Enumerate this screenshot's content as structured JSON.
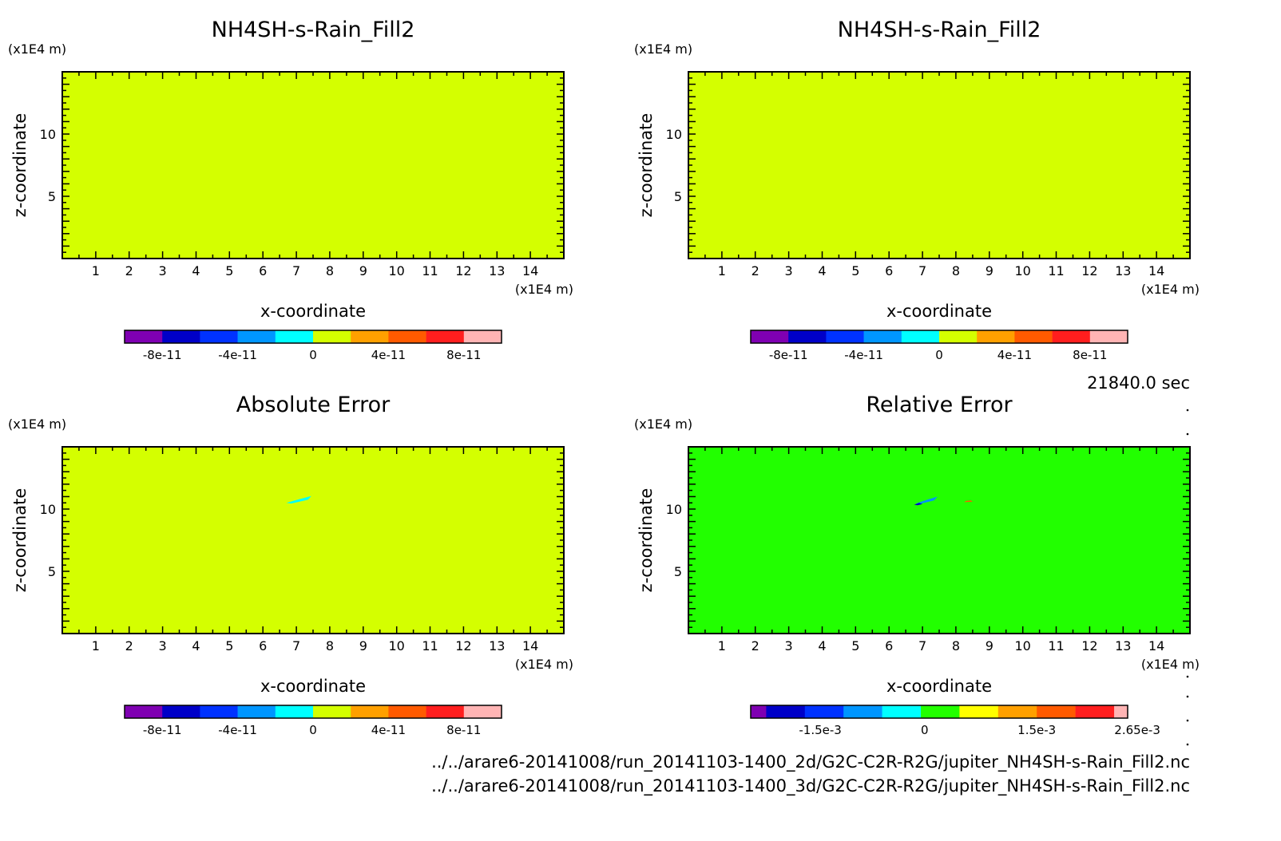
{
  "time_label": "21840.0 sec",
  "file_paths": [
    "../../arare6-20141008/run_20141103-1400_2d/G2C-C2R-R2G/jupiter_NH4SH-s-Rain_Fill2.nc",
    "../../arare6-20141008/run_20141103-1400_3d/G2C-C2R-R2G/jupiter_NH4SH-s-Rain_Fill2.nc"
  ],
  "chart_data": [
    {
      "type": "heatmap",
      "title": "NH4SH-s-Rain_Fill2",
      "xlabel": "x-coordinate",
      "ylabel": "z-coordinate",
      "x_unit": "(x1E4 m)",
      "y_unit": "(x1E4 m)",
      "xlim": [
        0,
        15
      ],
      "ylim": [
        0,
        15
      ],
      "x_ticks": [
        "1",
        "2",
        "3",
        "4",
        "5",
        "6",
        "7",
        "8",
        "9",
        "10",
        "11",
        "12",
        "13",
        "14"
      ],
      "y_ticks": [
        "5",
        "10"
      ],
      "field_color": "#d4ff00",
      "patches": [],
      "colorbar": {
        "colors": [
          "#7f00b2",
          "#0000c8",
          "#0032ff",
          "#0096ff",
          "#00ffff",
          "#d4ff00",
          "#ffa000",
          "#ff5a00",
          "#ff1e1e",
          "#ffb4b4"
        ],
        "labels": [
          "-8e-11",
          "-4e-11",
          "0",
          "4e-11",
          "8e-11"
        ],
        "label_positions": [
          1,
          3,
          5,
          7,
          9
        ]
      }
    },
    {
      "type": "heatmap",
      "title": "NH4SH-s-Rain_Fill2",
      "xlabel": "x-coordinate",
      "ylabel": "z-coordinate",
      "x_unit": "(x1E4 m)",
      "y_unit": "(x1E4 m)",
      "xlim": [
        0,
        15
      ],
      "ylim": [
        0,
        15
      ],
      "x_ticks": [
        "1",
        "2",
        "3",
        "4",
        "5",
        "6",
        "7",
        "8",
        "9",
        "10",
        "11",
        "12",
        "13",
        "14"
      ],
      "y_ticks": [
        "5",
        "10"
      ],
      "field_color": "#d4ff00",
      "patches": [],
      "colorbar": {
        "colors": [
          "#7f00b2",
          "#0000c8",
          "#0032ff",
          "#0096ff",
          "#00ffff",
          "#d4ff00",
          "#ffa000",
          "#ff5a00",
          "#ff1e1e",
          "#ffb4b4"
        ],
        "labels": [
          "-8e-11",
          "-4e-11",
          "0",
          "4e-11",
          "8e-11"
        ],
        "label_positions": [
          1,
          3,
          5,
          7,
          9
        ]
      }
    },
    {
      "type": "heatmap",
      "title": "Absolute Error",
      "xlabel": "x-coordinate",
      "ylabel": "z-coordinate",
      "x_unit": "(x1E4 m)",
      "y_unit": "(x1E4 m)",
      "xlim": [
        0,
        15
      ],
      "ylim": [
        0,
        15
      ],
      "x_ticks": [
        "1",
        "2",
        "3",
        "4",
        "5",
        "6",
        "7",
        "8",
        "9",
        "10",
        "11",
        "12",
        "13",
        "14"
      ],
      "y_ticks": [
        "5",
        "10"
      ],
      "field_color": "#d4ff00",
      "patches": [
        {
          "color": "#00ffff",
          "points": [
            [
              6.7,
              10.5
            ],
            [
              7.1,
              10.8
            ],
            [
              7.45,
              11.05
            ],
            [
              7.35,
              10.75
            ],
            [
              6.85,
              10.45
            ]
          ]
        }
      ],
      "colorbar": {
        "colors": [
          "#7f00b2",
          "#0000c8",
          "#0032ff",
          "#0096ff",
          "#00ffff",
          "#d4ff00",
          "#ffa000",
          "#ff5a00",
          "#ff1e1e",
          "#ffb4b4"
        ],
        "labels": [
          "-8e-11",
          "-4e-11",
          "0",
          "4e-11",
          "8e-11"
        ],
        "label_positions": [
          1,
          3,
          5,
          7,
          9
        ]
      }
    },
    {
      "type": "heatmap",
      "title": "Relative Error",
      "xlabel": "x-coordinate",
      "ylabel": "z-coordinate",
      "x_unit": "(x1E4 m)",
      "y_unit": "(x1E4 m)",
      "xlim": [
        0,
        15
      ],
      "ylim": [
        0,
        15
      ],
      "x_ticks": [
        "1",
        "2",
        "3",
        "4",
        "5",
        "6",
        "7",
        "8",
        "9",
        "10",
        "11",
        "12",
        "13",
        "14"
      ],
      "y_ticks": [
        "5",
        "10"
      ],
      "field_color": "#22ff00",
      "patches": [
        {
          "color": "#0096ff",
          "points": [
            [
              6.8,
              10.45
            ],
            [
              7.2,
              10.8
            ],
            [
              7.45,
              11.0
            ],
            [
              7.35,
              10.7
            ],
            [
              6.9,
              10.4
            ]
          ]
        },
        {
          "color": "#0000c8",
          "points": [
            [
              6.75,
              10.35
            ],
            [
              6.9,
              10.5
            ],
            [
              7.0,
              10.4
            ],
            [
              6.85,
              10.3
            ]
          ]
        },
        {
          "color": "#ff5a00",
          "points": [
            [
              8.25,
              10.55
            ],
            [
              8.5,
              10.6
            ],
            [
              8.45,
              10.7
            ],
            [
              8.3,
              10.65
            ]
          ]
        }
      ],
      "colorbar": {
        "colors": [
          "#7f00b2",
          "#0000c8",
          "#0032ff",
          "#0096ff",
          "#00ffff",
          "#22ff00",
          "#ffff00",
          "#ffa000",
          "#ff5a00",
          "#ff1e1e",
          "#ffb4b4"
        ],
        "widths": [
          0.4,
          1,
          1,
          1,
          1,
          1,
          1,
          1,
          1,
          1,
          0.35
        ],
        "labels": [
          "-1.5e-3",
          "0",
          "1.5e-3",
          "2.65e-3"
        ],
        "label_positions": [
          1.8,
          4.5,
          7.4,
          10
        ]
      }
    }
  ]
}
